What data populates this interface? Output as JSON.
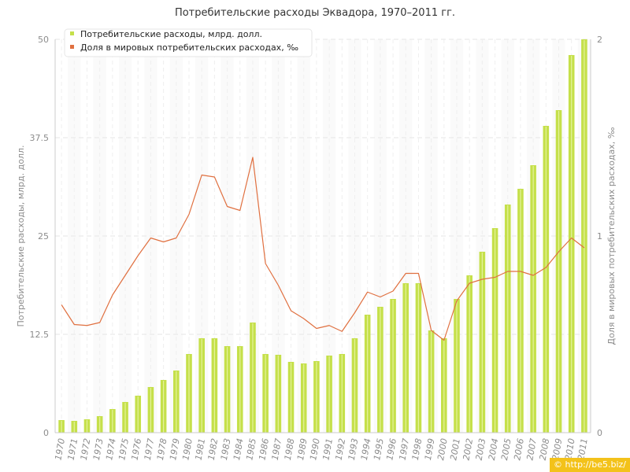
{
  "chart_data": {
    "type": "bar",
    "title": "Потребительские расходы Эквадора, 1970–2011 гг.",
    "categories": [
      "1970",
      "1971",
      "1972",
      "1973",
      "1974",
      "1975",
      "1976",
      "1977",
      "1978",
      "1979",
      "1980",
      "1981",
      "1982",
      "1983",
      "1984",
      "1985",
      "1986",
      "1987",
      "1988",
      "1989",
      "1990",
      "1991",
      "1992",
      "1993",
      "1994",
      "1995",
      "1996",
      "1997",
      "1998",
      "1999",
      "2000",
      "2001",
      "2002",
      "2003",
      "2004",
      "2005",
      "2006",
      "2007",
      "2008",
      "2009",
      "2010",
      "2011"
    ],
    "series": [
      {
        "name": "Потребительские расходы, млрд. долл.",
        "type": "bar",
        "axis": "left",
        "color": "#c5e04a",
        "values": [
          1.6,
          1.5,
          1.7,
          2.1,
          3.0,
          3.9,
          4.7,
          5.8,
          6.7,
          7.9,
          10.0,
          12.0,
          12.0,
          11.0,
          11.0,
          14.0,
          10.0,
          9.9,
          9.0,
          8.8,
          9.1,
          9.8,
          10.0,
          12.0,
          15.0,
          16.0,
          17.0,
          19.0,
          19.0,
          13.0,
          12.0,
          17.0,
          20.0,
          23.0,
          26.0,
          29.0,
          31.0,
          34.0,
          39.0,
          41.0,
          48.0,
          50.0
        ]
      },
      {
        "name": "Доля в мировых потребительских расходах, ‰",
        "type": "line",
        "axis": "right",
        "color": "#e07040",
        "values": [
          0.65,
          0.55,
          0.545,
          0.56,
          0.7,
          0.8,
          0.9,
          0.99,
          0.97,
          0.99,
          1.11,
          1.31,
          1.3,
          1.15,
          1.13,
          1.4,
          0.86,
          0.75,
          0.62,
          0.58,
          0.53,
          0.545,
          0.515,
          0.61,
          0.715,
          0.69,
          0.72,
          0.81,
          0.81,
          0.52,
          0.47,
          0.67,
          0.76,
          0.78,
          0.79,
          0.82,
          0.82,
          0.8,
          0.84,
          0.92,
          0.99,
          0.94
        ]
      }
    ],
    "ylabel": "Потребительские расходы, млрд. долл.",
    "ylim": [
      0,
      50
    ],
    "yticks": [
      "0",
      "12.5",
      "25",
      "37.5",
      "50"
    ],
    "y2label": "Доля в мировых потребительских расходах, ‰",
    "y2lim": [
      0,
      2
    ],
    "y2ticks": [
      "0",
      "1",
      "2"
    ],
    "grid": true,
    "legend_position": "top-left"
  },
  "watermark": "© http://be5.biz/"
}
